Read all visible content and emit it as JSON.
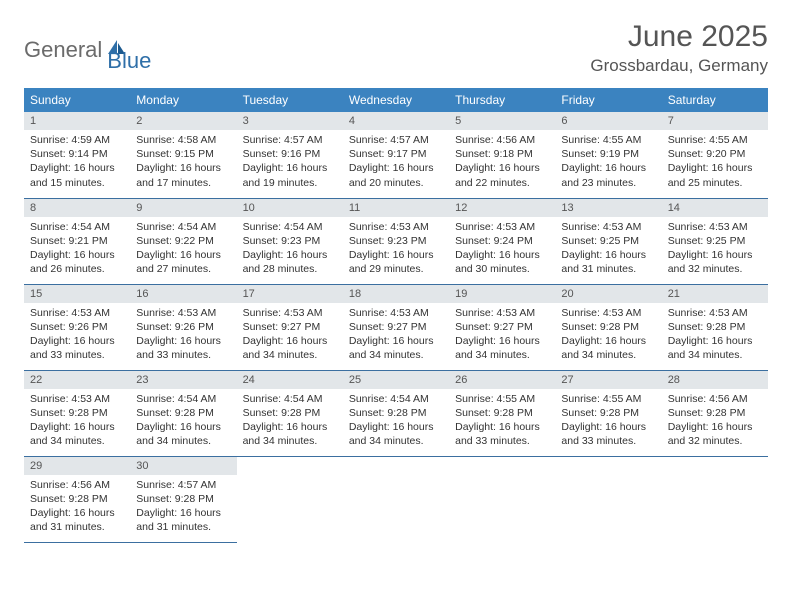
{
  "logo": {
    "word1": "General",
    "word2": "Blue"
  },
  "title": "June 2025",
  "location": "Grossbardau, Germany",
  "colors": {
    "header_bg": "#3b83c0",
    "header_text": "#ffffff",
    "daynum_bg": "#e2e6e9",
    "daynum_text": "#555555",
    "border": "#3b6fa0",
    "body_text": "#333333",
    "logo_gray": "#6b6b6b",
    "logo_blue": "#2f6fa8"
  },
  "weekdays": [
    "Sunday",
    "Monday",
    "Tuesday",
    "Wednesday",
    "Thursday",
    "Friday",
    "Saturday"
  ],
  "weeks": [
    [
      {
        "n": "1",
        "sr": "4:59 AM",
        "ss": "9:14 PM",
        "dl": "16 hours and 15 minutes."
      },
      {
        "n": "2",
        "sr": "4:58 AM",
        "ss": "9:15 PM",
        "dl": "16 hours and 17 minutes."
      },
      {
        "n": "3",
        "sr": "4:57 AM",
        "ss": "9:16 PM",
        "dl": "16 hours and 19 minutes."
      },
      {
        "n": "4",
        "sr": "4:57 AM",
        "ss": "9:17 PM",
        "dl": "16 hours and 20 minutes."
      },
      {
        "n": "5",
        "sr": "4:56 AM",
        "ss": "9:18 PM",
        "dl": "16 hours and 22 minutes."
      },
      {
        "n": "6",
        "sr": "4:55 AM",
        "ss": "9:19 PM",
        "dl": "16 hours and 23 minutes."
      },
      {
        "n": "7",
        "sr": "4:55 AM",
        "ss": "9:20 PM",
        "dl": "16 hours and 25 minutes."
      }
    ],
    [
      {
        "n": "8",
        "sr": "4:54 AM",
        "ss": "9:21 PM",
        "dl": "16 hours and 26 minutes."
      },
      {
        "n": "9",
        "sr": "4:54 AM",
        "ss": "9:22 PM",
        "dl": "16 hours and 27 minutes."
      },
      {
        "n": "10",
        "sr": "4:54 AM",
        "ss": "9:23 PM",
        "dl": "16 hours and 28 minutes."
      },
      {
        "n": "11",
        "sr": "4:53 AM",
        "ss": "9:23 PM",
        "dl": "16 hours and 29 minutes."
      },
      {
        "n": "12",
        "sr": "4:53 AM",
        "ss": "9:24 PM",
        "dl": "16 hours and 30 minutes."
      },
      {
        "n": "13",
        "sr": "4:53 AM",
        "ss": "9:25 PM",
        "dl": "16 hours and 31 minutes."
      },
      {
        "n": "14",
        "sr": "4:53 AM",
        "ss": "9:25 PM",
        "dl": "16 hours and 32 minutes."
      }
    ],
    [
      {
        "n": "15",
        "sr": "4:53 AM",
        "ss": "9:26 PM",
        "dl": "16 hours and 33 minutes."
      },
      {
        "n": "16",
        "sr": "4:53 AM",
        "ss": "9:26 PM",
        "dl": "16 hours and 33 minutes."
      },
      {
        "n": "17",
        "sr": "4:53 AM",
        "ss": "9:27 PM",
        "dl": "16 hours and 34 minutes."
      },
      {
        "n": "18",
        "sr": "4:53 AM",
        "ss": "9:27 PM",
        "dl": "16 hours and 34 minutes."
      },
      {
        "n": "19",
        "sr": "4:53 AM",
        "ss": "9:27 PM",
        "dl": "16 hours and 34 minutes."
      },
      {
        "n": "20",
        "sr": "4:53 AM",
        "ss": "9:28 PM",
        "dl": "16 hours and 34 minutes."
      },
      {
        "n": "21",
        "sr": "4:53 AM",
        "ss": "9:28 PM",
        "dl": "16 hours and 34 minutes."
      }
    ],
    [
      {
        "n": "22",
        "sr": "4:53 AM",
        "ss": "9:28 PM",
        "dl": "16 hours and 34 minutes."
      },
      {
        "n": "23",
        "sr": "4:54 AM",
        "ss": "9:28 PM",
        "dl": "16 hours and 34 minutes."
      },
      {
        "n": "24",
        "sr": "4:54 AM",
        "ss": "9:28 PM",
        "dl": "16 hours and 34 minutes."
      },
      {
        "n": "25",
        "sr": "4:54 AM",
        "ss": "9:28 PM",
        "dl": "16 hours and 34 minutes."
      },
      {
        "n": "26",
        "sr": "4:55 AM",
        "ss": "9:28 PM",
        "dl": "16 hours and 33 minutes."
      },
      {
        "n": "27",
        "sr": "4:55 AM",
        "ss": "9:28 PM",
        "dl": "16 hours and 33 minutes."
      },
      {
        "n": "28",
        "sr": "4:56 AM",
        "ss": "9:28 PM",
        "dl": "16 hours and 32 minutes."
      }
    ],
    [
      {
        "n": "29",
        "sr": "4:56 AM",
        "ss": "9:28 PM",
        "dl": "16 hours and 31 minutes."
      },
      {
        "n": "30",
        "sr": "4:57 AM",
        "ss": "9:28 PM",
        "dl": "16 hours and 31 minutes."
      },
      null,
      null,
      null,
      null,
      null
    ]
  ],
  "labels": {
    "sunrise": "Sunrise: ",
    "sunset": "Sunset: ",
    "daylight": "Daylight: "
  }
}
